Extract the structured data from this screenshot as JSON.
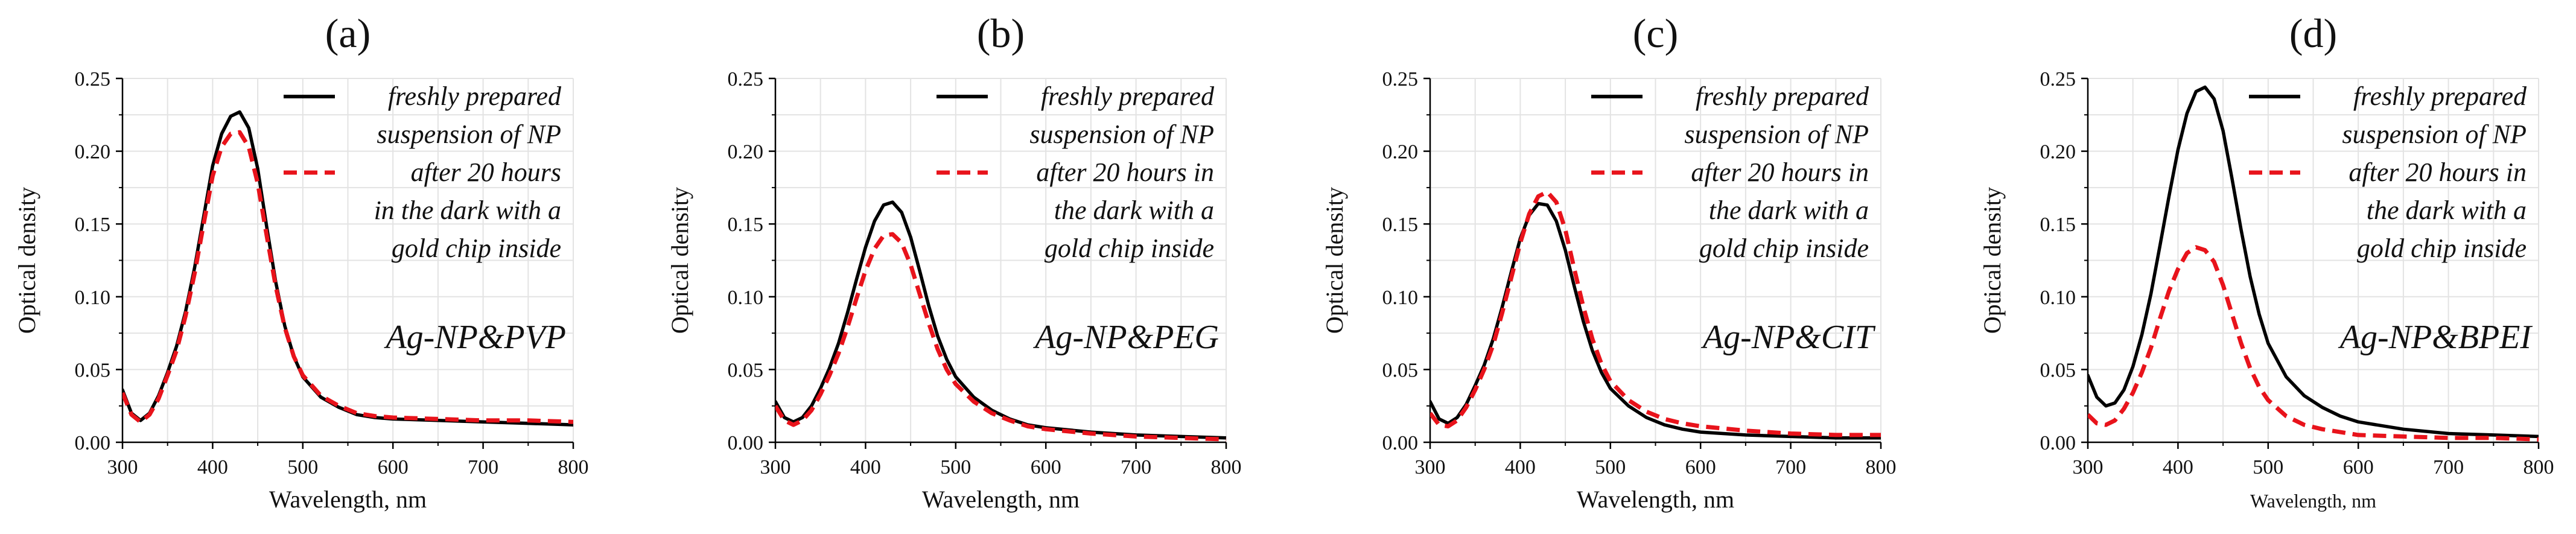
{
  "colors": {
    "fresh": "#000000",
    "after": "#e8131b",
    "grid": "#e3e3e3",
    "axis": "#000000",
    "text": "#111111"
  },
  "chart_data": [
    {
      "type": "line",
      "panel_label": "(a)",
      "xlabel": "Wavelength, nm",
      "ylabel": "Optical density",
      "xlim": [
        300,
        800
      ],
      "ylim": [
        0,
        0.25
      ],
      "xticks": [
        "300",
        "400",
        "500",
        "600",
        "700",
        "800"
      ],
      "yticks": [
        "0.00",
        "0.05",
        "0.10",
        "0.15",
        "0.20",
        "0.25"
      ],
      "annotation": "Ag-NP&PVP",
      "legend": {
        "fresh": [
          "freshly prepared",
          "suspension of NP"
        ],
        "after": [
          "after 20 hours",
          "in the dark with a",
          "gold chip inside"
        ]
      },
      "series": [
        {
          "name": "freshly prepared suspension of NP",
          "style": "solid",
          "x": [
            300,
            310,
            320,
            330,
            340,
            350,
            360,
            370,
            380,
            390,
            400,
            410,
            420,
            430,
            440,
            450,
            460,
            470,
            480,
            490,
            500,
            520,
            540,
            560,
            580,
            600,
            650,
            700,
            750,
            800
          ],
          "y": [
            0.036,
            0.02,
            0.015,
            0.02,
            0.032,
            0.048,
            0.066,
            0.09,
            0.12,
            0.155,
            0.19,
            0.212,
            0.224,
            0.227,
            0.216,
            0.188,
            0.148,
            0.11,
            0.08,
            0.059,
            0.045,
            0.031,
            0.024,
            0.019,
            0.017,
            0.016,
            0.015,
            0.014,
            0.013,
            0.012
          ]
        },
        {
          "name": "after 20 hours in the dark with a gold chip inside",
          "style": "dashed",
          "x": [
            300,
            310,
            320,
            330,
            340,
            350,
            360,
            370,
            380,
            390,
            400,
            410,
            420,
            430,
            440,
            450,
            460,
            470,
            480,
            490,
            500,
            520,
            540,
            560,
            580,
            600,
            650,
            700,
            750,
            800
          ],
          "y": [
            0.034,
            0.019,
            0.014,
            0.019,
            0.03,
            0.046,
            0.063,
            0.087,
            0.116,
            0.15,
            0.183,
            0.203,
            0.212,
            0.213,
            0.203,
            0.178,
            0.142,
            0.107,
            0.079,
            0.059,
            0.046,
            0.032,
            0.025,
            0.02,
            0.018,
            0.017,
            0.016,
            0.015,
            0.015,
            0.014
          ]
        }
      ]
    },
    {
      "type": "line",
      "panel_label": "(b)",
      "xlabel": "Wavelength, nm",
      "ylabel": "Optical density",
      "xlim": [
        300,
        800
      ],
      "ylim": [
        0,
        0.25
      ],
      "xticks": [
        "300",
        "400",
        "500",
        "600",
        "700",
        "800"
      ],
      "yticks": [
        "0.00",
        "0.05",
        "0.10",
        "0.15",
        "0.20",
        "0.25"
      ],
      "annotation": "Ag-NP&PEG",
      "legend": {
        "fresh": [
          "freshly prepared",
          "suspension of NP"
        ],
        "after": [
          "after 20 hours in",
          "the dark with a",
          "gold chip inside"
        ]
      },
      "series": [
        {
          "name": "freshly prepared suspension of NP",
          "style": "solid",
          "x": [
            300,
            310,
            320,
            330,
            340,
            350,
            360,
            370,
            380,
            390,
            400,
            410,
            420,
            430,
            440,
            450,
            460,
            470,
            480,
            490,
            500,
            520,
            540,
            560,
            580,
            600,
            650,
            700,
            750,
            800
          ],
          "y": [
            0.028,
            0.017,
            0.014,
            0.017,
            0.025,
            0.037,
            0.051,
            0.068,
            0.089,
            0.112,
            0.134,
            0.152,
            0.163,
            0.165,
            0.158,
            0.141,
            0.118,
            0.094,
            0.073,
            0.057,
            0.045,
            0.031,
            0.022,
            0.016,
            0.012,
            0.01,
            0.007,
            0.005,
            0.004,
            0.003
          ]
        },
        {
          "name": "after 20 hours in the dark with a gold chip inside",
          "style": "dashed",
          "x": [
            300,
            310,
            320,
            330,
            340,
            350,
            360,
            370,
            380,
            390,
            400,
            410,
            420,
            430,
            440,
            450,
            460,
            470,
            480,
            490,
            500,
            520,
            540,
            560,
            580,
            600,
            650,
            700,
            750,
            800
          ],
          "y": [
            0.025,
            0.015,
            0.012,
            0.015,
            0.022,
            0.033,
            0.046,
            0.061,
            0.079,
            0.099,
            0.118,
            0.133,
            0.142,
            0.143,
            0.137,
            0.122,
            0.102,
            0.082,
            0.064,
            0.05,
            0.04,
            0.028,
            0.02,
            0.015,
            0.011,
            0.009,
            0.006,
            0.004,
            0.003,
            0.002
          ]
        }
      ]
    },
    {
      "type": "line",
      "panel_label": "(c)",
      "xlabel": "Wavelength, nm",
      "ylabel": "Optical density",
      "xlim": [
        300,
        800
      ],
      "ylim": [
        0,
        0.25
      ],
      "xticks": [
        "300",
        "400",
        "500",
        "600",
        "700",
        "800"
      ],
      "yticks": [
        "0.00",
        "0.05",
        "0.10",
        "0.15",
        "0.20",
        "0.25"
      ],
      "annotation": "Ag-NP&CIT",
      "legend": {
        "fresh": [
          "freshly prepared",
          "suspension of NP"
        ],
        "after": [
          "after 20 hours in",
          "the dark with a",
          "gold chip inside"
        ]
      },
      "series": [
        {
          "name": "freshly prepared suspension of NP",
          "style": "solid",
          "x": [
            300,
            310,
            320,
            330,
            340,
            350,
            360,
            370,
            380,
            390,
            400,
            410,
            420,
            430,
            440,
            450,
            460,
            470,
            480,
            490,
            500,
            520,
            540,
            560,
            580,
            600,
            650,
            700,
            750,
            800
          ],
          "y": [
            0.028,
            0.016,
            0.013,
            0.017,
            0.026,
            0.039,
            0.053,
            0.071,
            0.093,
            0.117,
            0.14,
            0.156,
            0.164,
            0.163,
            0.152,
            0.132,
            0.107,
            0.083,
            0.063,
            0.048,
            0.037,
            0.025,
            0.017,
            0.012,
            0.009,
            0.007,
            0.005,
            0.004,
            0.003,
            0.003
          ]
        },
        {
          "name": "after 20 hours in the dark with a gold chip inside",
          "style": "dashed",
          "x": [
            300,
            310,
            320,
            330,
            340,
            350,
            360,
            370,
            380,
            390,
            400,
            410,
            420,
            430,
            440,
            450,
            460,
            470,
            480,
            490,
            500,
            520,
            540,
            560,
            580,
            600,
            650,
            700,
            750,
            800
          ],
          "y": [
            0.02,
            0.012,
            0.011,
            0.015,
            0.024,
            0.036,
            0.05,
            0.067,
            0.089,
            0.113,
            0.137,
            0.157,
            0.169,
            0.172,
            0.165,
            0.146,
            0.119,
            0.093,
            0.071,
            0.054,
            0.042,
            0.029,
            0.021,
            0.016,
            0.013,
            0.011,
            0.008,
            0.006,
            0.005,
            0.005
          ]
        }
      ]
    },
    {
      "type": "line",
      "panel_label": "(d)",
      "xlabel": "Wavelength, nm",
      "ylabel": "Optical density",
      "xlim": [
        300,
        800
      ],
      "ylim": [
        0,
        0.25
      ],
      "xticks": [
        "300",
        "400",
        "500",
        "600",
        "700",
        "800"
      ],
      "yticks": [
        "0.00",
        "0.05",
        "0.10",
        "0.15",
        "0.20",
        "0.25"
      ],
      "annotation": "Ag-NP&BPEI",
      "legend": {
        "fresh": [
          "freshly prepared",
          "suspension of NP"
        ],
        "after": [
          "after 20 hours in",
          "the dark with a",
          "gold chip inside"
        ]
      },
      "series": [
        {
          "name": "freshly prepared suspension of NP",
          "style": "solid",
          "x": [
            300,
            310,
            320,
            330,
            340,
            350,
            360,
            370,
            380,
            390,
            400,
            410,
            420,
            430,
            440,
            450,
            460,
            470,
            480,
            490,
            500,
            520,
            540,
            560,
            580,
            600,
            650,
            700,
            750,
            800
          ],
          "y": [
            0.046,
            0.031,
            0.025,
            0.027,
            0.036,
            0.052,
            0.074,
            0.102,
            0.135,
            0.169,
            0.201,
            0.226,
            0.241,
            0.244,
            0.236,
            0.214,
            0.181,
            0.146,
            0.114,
            0.088,
            0.068,
            0.045,
            0.032,
            0.024,
            0.018,
            0.014,
            0.009,
            0.006,
            0.005,
            0.004
          ]
        },
        {
          "name": "after 20 hours in the dark with a gold chip inside",
          "style": "dashed",
          "x": [
            300,
            310,
            320,
            330,
            340,
            350,
            360,
            370,
            380,
            390,
            400,
            410,
            420,
            430,
            440,
            450,
            460,
            470,
            480,
            490,
            500,
            520,
            540,
            560,
            580,
            600,
            650,
            700,
            750,
            800
          ],
          "y": [
            0.019,
            0.013,
            0.012,
            0.015,
            0.023,
            0.034,
            0.048,
            0.065,
            0.085,
            0.104,
            0.119,
            0.13,
            0.134,
            0.132,
            0.124,
            0.108,
            0.088,
            0.068,
            0.051,
            0.038,
            0.029,
            0.018,
            0.012,
            0.009,
            0.007,
            0.005,
            0.004,
            0.003,
            0.003,
            0.002
          ]
        }
      ]
    }
  ]
}
